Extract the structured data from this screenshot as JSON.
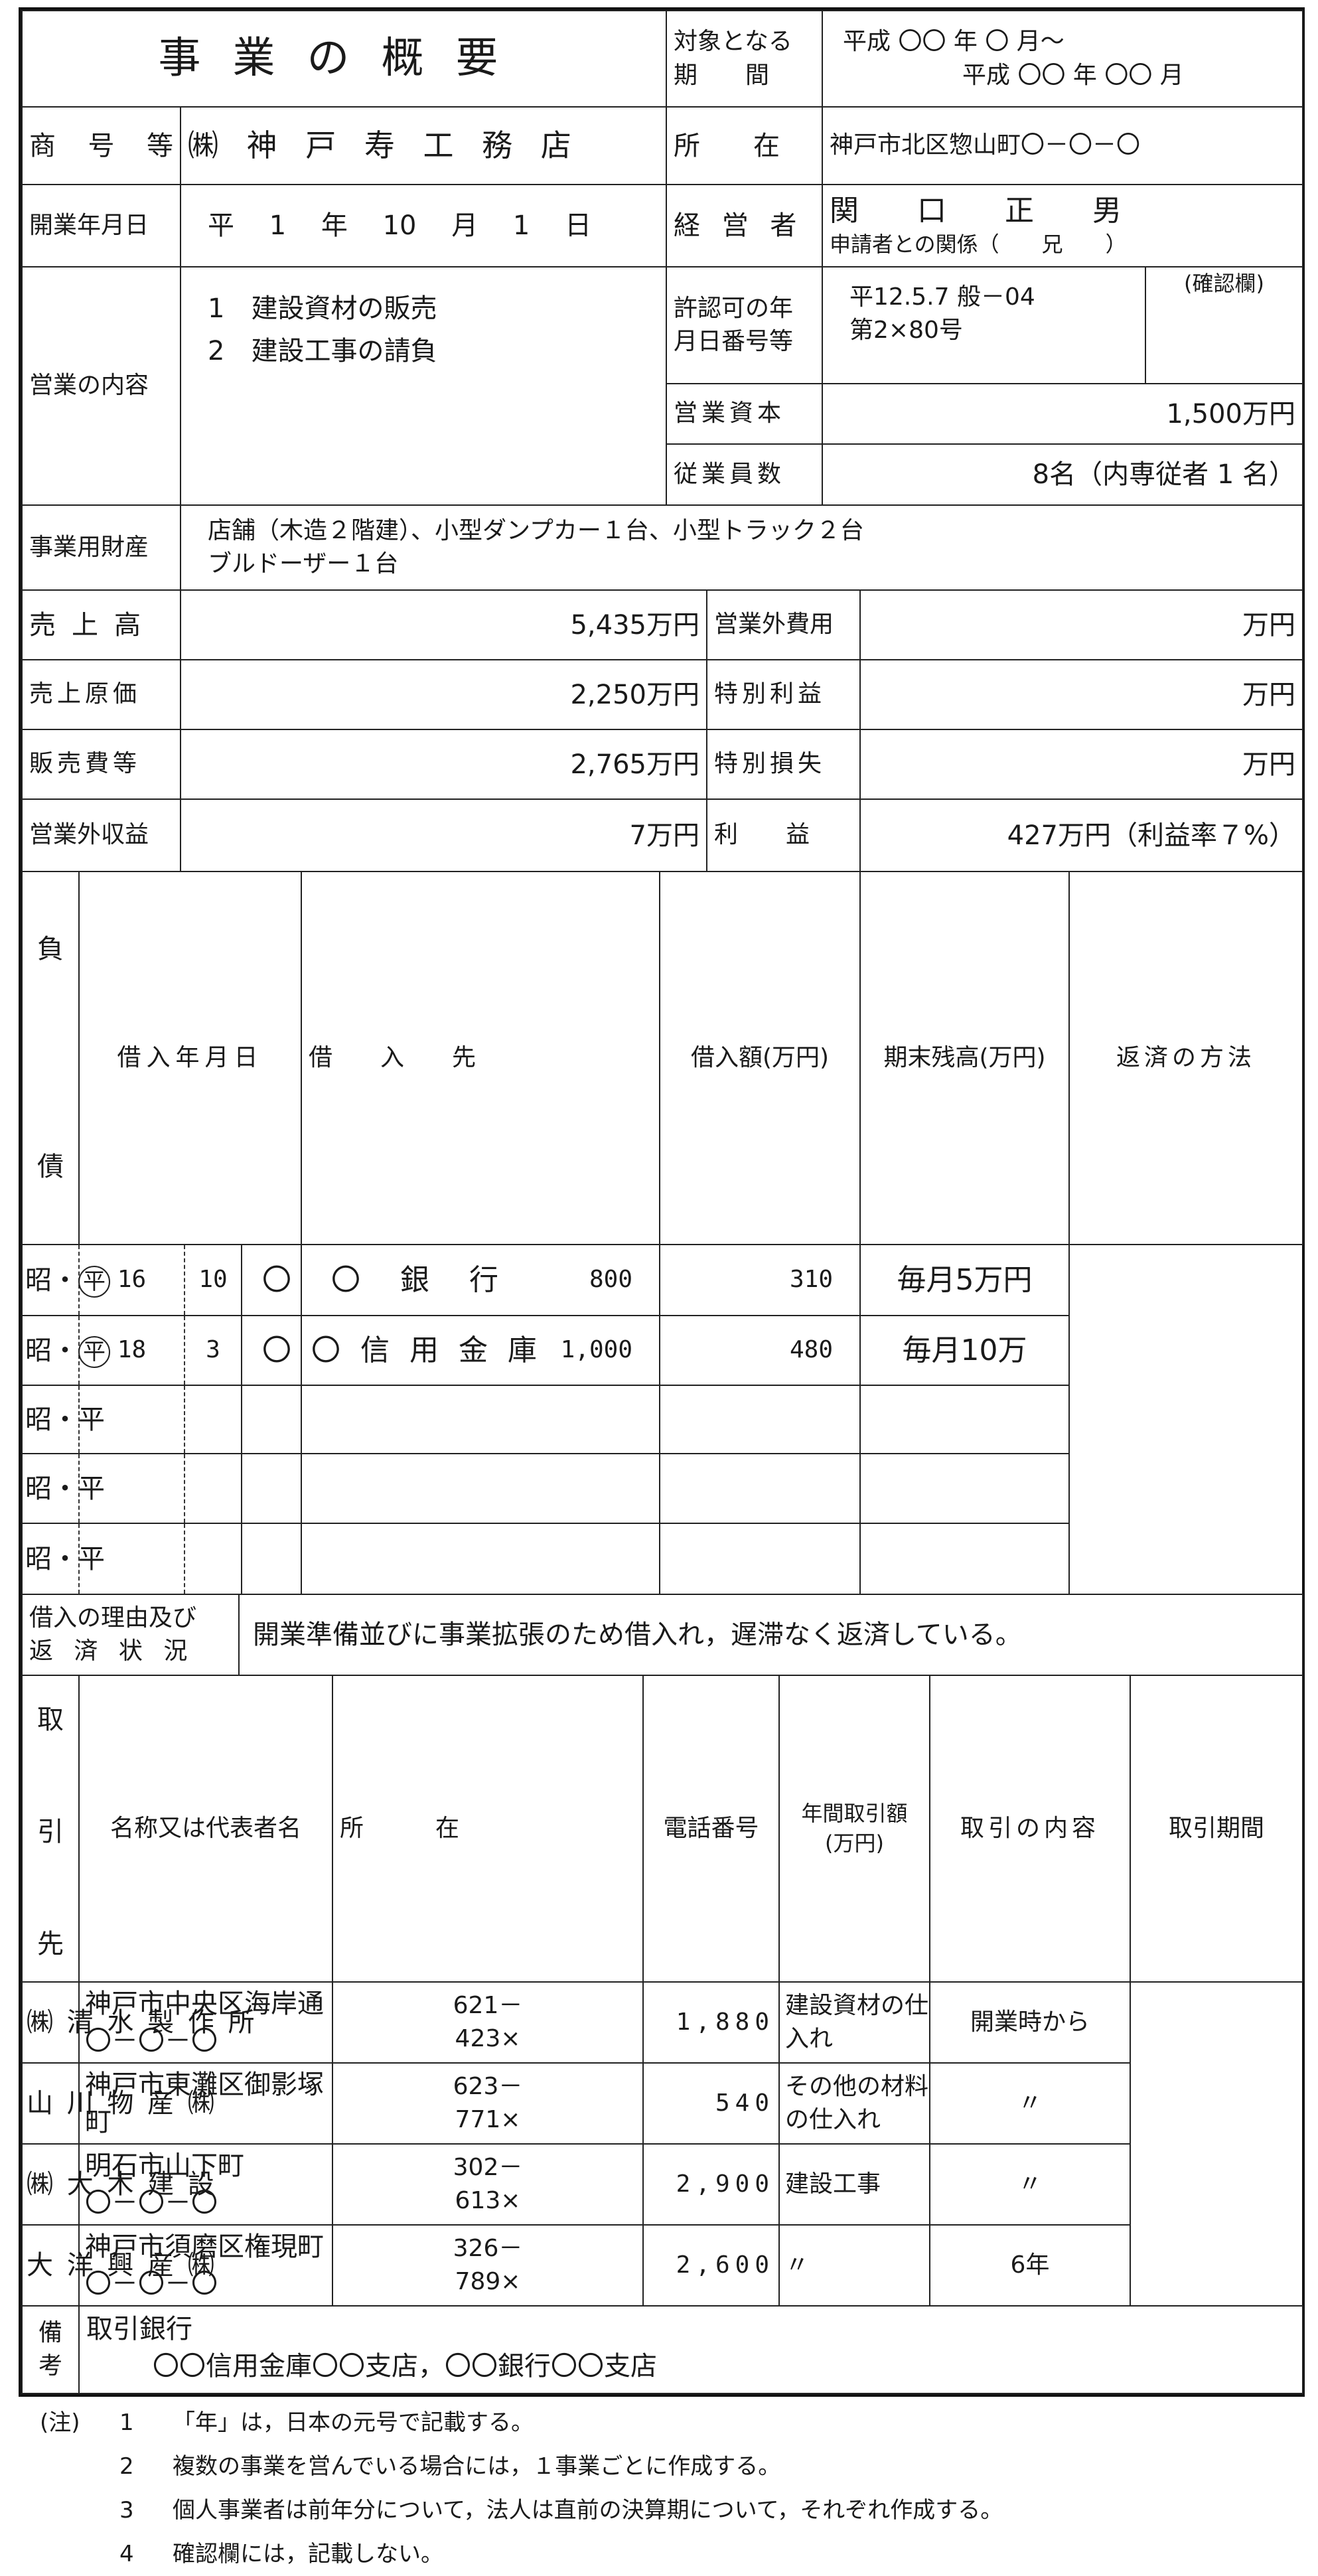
{
  "header": {
    "title": "事業の概要",
    "period_label_1": "対象となる",
    "period_label_2": "期　　間",
    "period_from": "平成 〇〇 年 〇 月～",
    "period_to": "平成 〇〇 年 〇〇 月"
  },
  "company": {
    "name_label": "商号等",
    "name": "㈱ 神 戸 寿 工 務 店",
    "location_label": "所　　在",
    "location": "神戸市北区惣山町〇－〇－〇"
  },
  "opening": {
    "label": "開業年月日",
    "value": "平　 1　 年　 10　 月　 1　 日",
    "manager_label": "経 営 者",
    "manager": "関　　口　　正　　男",
    "relation": "申請者との関係（　　兄　　）"
  },
  "business": {
    "label": "営業の内容",
    "items": [
      "1　建設資材の販売",
      "2　建設工事の請負"
    ],
    "license_label_1": "許認可の年",
    "license_label_2": "月日番号等",
    "license_lines": [
      "平12.5.7 般－04",
      "第2×80号"
    ],
    "confirm_label": "(確認欄)",
    "capital_label": "営業資本",
    "capital": "1,500万円",
    "employees_label": "従業員数",
    "employees": "8名（内専従者 1 名）"
  },
  "assets": {
    "label": "事業用財産",
    "lines": [
      "店舗（木造２階建）、小型ダンプカー１台、小型トラック２台",
      "ブルドーザー１台"
    ]
  },
  "financials": [
    {
      "label": "売上高",
      "value": "5,435万円",
      "label2": "営業外費用",
      "value2": "万円"
    },
    {
      "label": "売上原価",
      "value": "2,250万円",
      "label2": "特別利益",
      "value2": "万円"
    },
    {
      "label": "販売費等",
      "value": "2,765万円",
      "label2": "特別損失",
      "value2": "万円"
    },
    {
      "label": "営業外収益",
      "value": "7万円",
      "label2": "利　　益",
      "value2": "427万円（利益率７%）"
    }
  ],
  "loans": {
    "side_label_top": "負",
    "side_label_bottom": "債",
    "headers": [
      "借入年月日",
      "借　　入　　先",
      "借入額(万円)",
      "期末残高(万円)",
      "返済の方法"
    ],
    "era_options": [
      "昭",
      "平"
    ],
    "era_separator": "・",
    "rows": [
      {
        "year": "16",
        "month": "10",
        "lender": "〇　〇　銀　行",
        "amount": "800",
        "balance": "310",
        "method": "毎月5万円",
        "era_selected": "平"
      },
      {
        "year": "18",
        "month": "3",
        "lender": "〇 〇 信 用 金 庫",
        "amount": "1,000",
        "balance": "480",
        "method": "毎月10万",
        "era_selected": "平"
      },
      {
        "year": "",
        "month": "",
        "lender": "",
        "amount": "",
        "balance": "",
        "method": "",
        "era_selected": ""
      },
      {
        "year": "",
        "month": "",
        "lender": "",
        "amount": "",
        "balance": "",
        "method": "",
        "era_selected": ""
      },
      {
        "year": "",
        "month": "",
        "lender": "",
        "amount": "",
        "balance": "",
        "method": "",
        "era_selected": ""
      }
    ]
  },
  "reason": {
    "label_1": "借入の理由及び",
    "label_2": "返 済 状 況",
    "text": "開業準備並びに事業拡張のため借入れ，遅滞なく返済している。"
  },
  "partners": {
    "side_label": [
      "取",
      "引",
      "先"
    ],
    "headers": [
      "名称又は代表者名",
      "所　　　在",
      "電話番号",
      "年間取引額",
      "(万円)",
      "取引の内容",
      "取引期間"
    ],
    "rows": [
      {
        "name": "㈱ 清 水 製 作 所",
        "address": [
          "神戸市中央区海岸通",
          "〇－〇－〇"
        ],
        "phone": [
          "621－",
          "423×"
        ],
        "amount": "1,880",
        "content": [
          "建設資材の仕",
          "入れ"
        ],
        "period": "開業時から"
      },
      {
        "name": "山 川 物 産 ㈱",
        "address": [
          "神戸市東灘区御影塚",
          "町"
        ],
        "phone": [
          "623－",
          "771×"
        ],
        "amount": "540",
        "content": [
          "その他の材料",
          "の仕入れ"
        ],
        "period": "〃"
      },
      {
        "name": "㈱ 大 木 建 設",
        "address": [
          "明石市山下町",
          "〇－〇－〇"
        ],
        "phone": [
          "302－",
          "613×"
        ],
        "amount": "2,900",
        "content": [
          "建設工事",
          ""
        ],
        "period": "〃"
      },
      {
        "name": "大 洋 興 産 ㈱",
        "address": [
          "神戸市須磨区権現町",
          "〇－〇－〇"
        ],
        "phone": [
          "326－",
          "789×"
        ],
        "amount": "2,600",
        "content": [
          "〃",
          ""
        ],
        "period": "6年"
      }
    ]
  },
  "remarks": {
    "label": [
      "備",
      "考"
    ],
    "line_1": "取引銀行",
    "line_2": "〇〇信用金庫〇〇支店，〇〇銀行〇〇支店"
  },
  "notes": {
    "prefix": "(注)",
    "items": [
      {
        "num": "1",
        "text": "「年」は，日本の元号で記載する。"
      },
      {
        "num": "2",
        "text": "複数の事業を営んでいる場合には，１事業ごとに作成する。"
      },
      {
        "num": "3",
        "text": "個人事業者は前年分について，法人は直前の決算期について，それぞれ作成する。"
      },
      {
        "num": "4",
        "text": "確認欄には，記載しない。"
      }
    ]
  }
}
